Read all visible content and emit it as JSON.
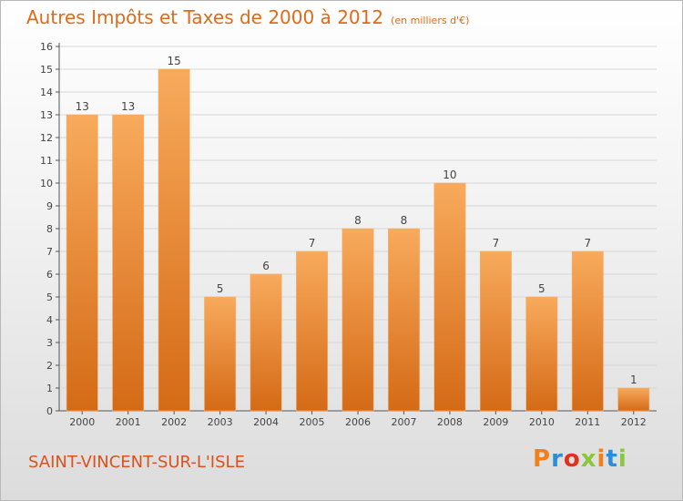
{
  "header": {
    "title": "Autres Impôts et Taxes de 2000 à 2012",
    "unit": "(en milliers d'€)"
  },
  "commune": "SAINT-VINCENT-SUR-L'ISLE",
  "logo": {
    "text": "Proxiti",
    "colors": [
      "#f0801c",
      "#2a8fd6",
      "#e0301e",
      "#8cc63f",
      "#f0801c",
      "#2a8fd6",
      "#8cc63f"
    ]
  },
  "colors": {
    "bar_light": "#f8aa5c",
    "bar_dark": "#d86f1a",
    "title": "#e06a1a",
    "grid": "#d6d6d6"
  },
  "chart_data": {
    "type": "bar",
    "categories": [
      "2000",
      "2001",
      "2002",
      "2003",
      "2004",
      "2005",
      "2006",
      "2007",
      "2008",
      "2009",
      "2010",
      "2011",
      "2012"
    ],
    "values": [
      13,
      13,
      15,
      5,
      6,
      7,
      8,
      8,
      10,
      7,
      5,
      7,
      1
    ],
    "yticks": [
      0,
      1,
      2,
      3,
      4,
      5,
      6,
      7,
      8,
      9,
      10,
      11,
      12,
      13,
      14,
      15,
      16
    ],
    "ylim": [
      0,
      16
    ],
    "grid": true
  }
}
